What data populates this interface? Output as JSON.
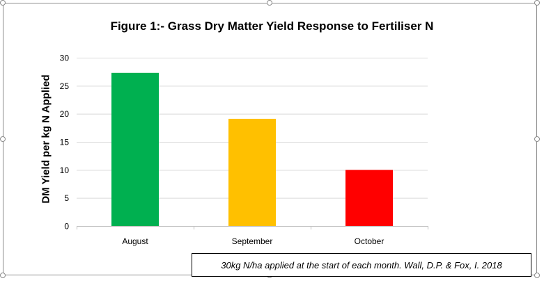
{
  "chart_data": {
    "type": "bar",
    "title": "Figure 1:- Grass Dry Matter Yield Response to Fertiliser N",
    "xlabel": "",
    "ylabel": "DM Yield per kg N Applied",
    "categories": [
      "August",
      "September",
      "October"
    ],
    "values": [
      27.3,
      19.1,
      10.0
    ],
    "colors": [
      "#00b050",
      "#ffc000",
      "#ff0000"
    ],
    "ylim": [
      0,
      30
    ],
    "yticks": [
      "0",
      "5",
      "10",
      "15",
      "20",
      "25",
      "30"
    ],
    "grid": true,
    "legend": "none"
  },
  "annotation": {
    "text": "30kg N/ha applied at the start of each month.  Wall, D.P. & Fox, I. 2018"
  }
}
